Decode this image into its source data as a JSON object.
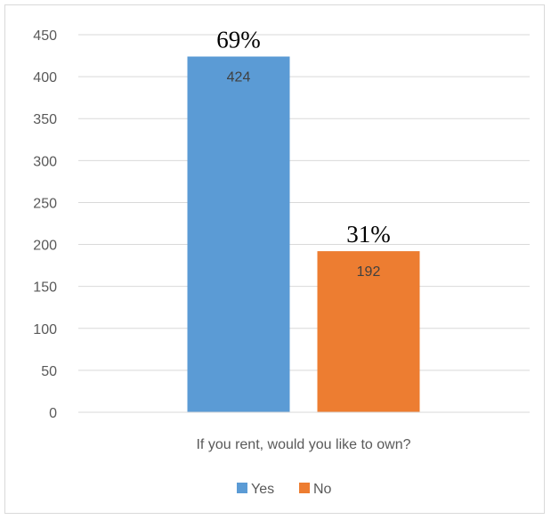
{
  "chart_data": {
    "type": "bar",
    "title": "",
    "xlabel": "",
    "ylabel": "",
    "ylim": [
      0,
      450
    ],
    "yticks": [
      0,
      50,
      100,
      150,
      200,
      250,
      300,
      350,
      400,
      450
    ],
    "grid": true,
    "legend_position": "bottom",
    "category_label": "If you rent, would you like to own?",
    "series": [
      {
        "name": "Yes",
        "value": 424,
        "percent_label": "69%",
        "color": "#5b9bd5"
      },
      {
        "name": "No",
        "value": 192,
        "percent_label": "31%",
        "color": "#ed7d31"
      }
    ]
  }
}
